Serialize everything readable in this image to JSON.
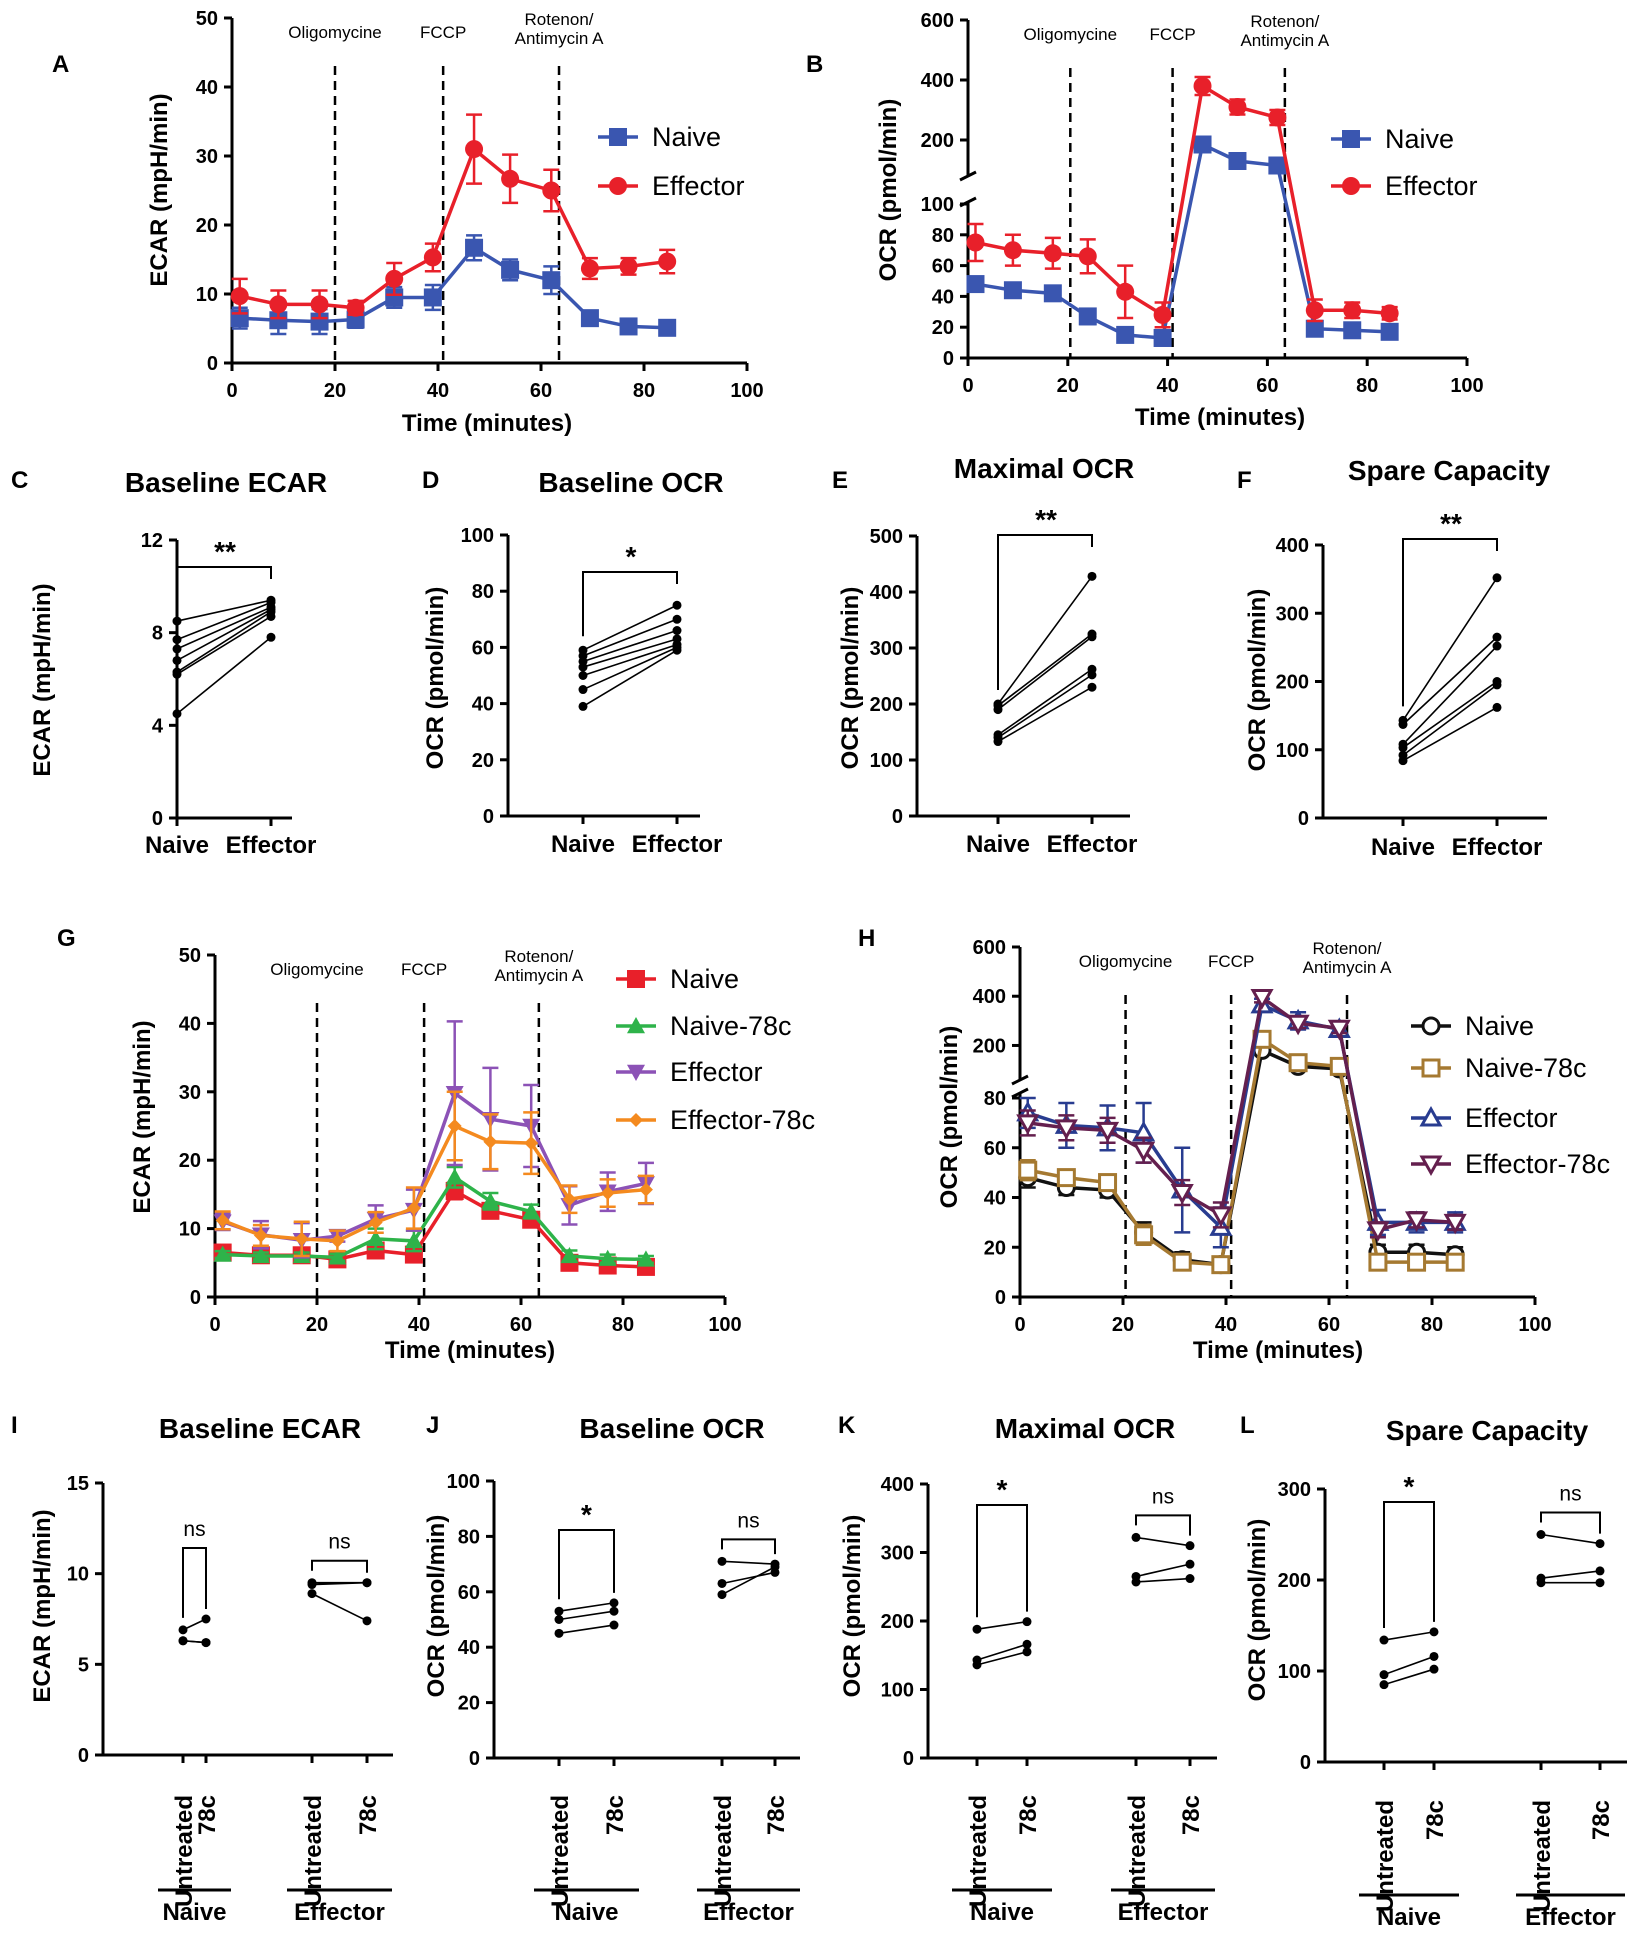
{
  "colors": {
    "naive": "#3a56b0",
    "effector": "#e8202a",
    "g_naive": "#e8202a",
    "g_naive78": "#2eb34a",
    "g_eff": "#8c52b6",
    "g_eff78": "#f48a1f",
    "h_naive": "#111111",
    "h_naive78": "#a57931",
    "h_eff": "#283c90",
    "h_eff78": "#641f4e"
  },
  "chart_data": [
    {
      "panel": "A",
      "type": "line",
      "xlabel": "Time (minutes)",
      "ylabel": "ECAR (mpH/min)",
      "xlim": [
        0,
        100
      ],
      "ylim": [
        0,
        50
      ],
      "xticks": [
        "0",
        "20",
        "40",
        "60",
        "80",
        "100"
      ],
      "yticks": [
        "0",
        "10",
        "20",
        "30",
        "40",
        "50"
      ],
      "injections": [
        {
          "x": 20,
          "label": "Oligomycine"
        },
        {
          "x": 41,
          "label": "FCCP"
        },
        {
          "x": 63.5,
          "label": "Rotenon/ Antimycin A"
        }
      ],
      "x": [
        1.5,
        9,
        17,
        24,
        31.5,
        39,
        47,
        54,
        62,
        69.5,
        77,
        84.5
      ],
      "series": [
        {
          "name": "Naive",
          "marker": "square",
          "values": [
            6.5,
            6.2,
            6,
            6.3,
            9.5,
            9.5,
            16.7,
            13.5,
            12,
            6.5,
            5.3,
            5.1
          ],
          "err": [
            1.5,
            2,
            1.8,
            1.2,
            1.5,
            1.8,
            1.8,
            1.5,
            2,
            0.5,
            0.5,
            0.4
          ]
        },
        {
          "name": "Effector",
          "marker": "circle",
          "values": [
            9.7,
            8.5,
            8.5,
            8,
            12.2,
            15.3,
            31,
            26.7,
            25,
            13.7,
            14,
            14.7
          ],
          "err": [
            2.5,
            2,
            2,
            1,
            2.3,
            2,
            5,
            3.5,
            3,
            1.5,
            1.2,
            1.7
          ]
        }
      ]
    },
    {
      "panel": "B",
      "type": "line",
      "xlabel": "Time (minutes)",
      "ylabel": "OCR (pmol/min)",
      "xlim": [
        0,
        100
      ],
      "ylim_lower": [
        0,
        100
      ],
      "ylim_upper": [
        100,
        600
      ],
      "broken_axis": true,
      "xticks": [
        "0",
        "20",
        "40",
        "60",
        "80",
        "100"
      ],
      "yticks": [
        "0",
        "20",
        "40",
        "60",
        "80",
        "100",
        "200",
        "400",
        "600"
      ],
      "injections": [
        {
          "x": 20.5,
          "label": "Oligomycine"
        },
        {
          "x": 41,
          "label": "FCCP"
        },
        {
          "x": 63.5,
          "label": "Rotenon/ Antimycin A"
        }
      ],
      "x": [
        1.5,
        9,
        17,
        24,
        31.5,
        39,
        47,
        54,
        62,
        69.5,
        77,
        84.5
      ],
      "series": [
        {
          "name": "Naive",
          "marker": "square",
          "values": [
            48,
            44,
            42,
            27,
            15,
            13,
            185,
            130,
            115,
            19,
            18,
            17
          ],
          "err": [
            3,
            2,
            2,
            5,
            2,
            2,
            10,
            8,
            8,
            2,
            2,
            2
          ]
        },
        {
          "name": "Effector",
          "marker": "circle",
          "values": [
            75,
            70,
            68,
            66,
            43,
            28,
            380,
            310,
            275,
            31,
            31,
            29
          ],
          "err": [
            12,
            10,
            10,
            11,
            17,
            8,
            30,
            25,
            25,
            7,
            5,
            4
          ]
        }
      ]
    },
    {
      "panel": "C",
      "type": "paired",
      "title": "Baseline ECAR",
      "ylabel": "ECAR (mpH/min)",
      "ylim": [
        0,
        12
      ],
      "yticks": [
        "0",
        "4",
        "8",
        "12"
      ],
      "categories": [
        "Naive",
        "Effector"
      ],
      "sig": "**",
      "pairs": [
        [
          8.5,
          9.4
        ],
        [
          7.7,
          9.3
        ],
        [
          7.3,
          9.1
        ],
        [
          6.8,
          9
        ],
        [
          6.3,
          8.9
        ],
        [
          6.2,
          8.7
        ],
        [
          4.5,
          7.8
        ]
      ]
    },
    {
      "panel": "D",
      "type": "paired",
      "title": "Baseline OCR",
      "ylabel": "OCR (pmol/min)",
      "ylim": [
        0,
        100
      ],
      "yticks": [
        "0",
        "20",
        "40",
        "60",
        "80",
        "100"
      ],
      "categories": [
        "Naive",
        "Effector"
      ],
      "sig": "*",
      "pairs": [
        [
          59,
          75
        ],
        [
          57,
          70
        ],
        [
          55,
          66
        ],
        [
          53,
          63
        ],
        [
          50,
          61
        ],
        [
          45,
          60
        ],
        [
          39,
          59
        ]
      ]
    },
    {
      "panel": "E",
      "type": "paired",
      "title": "Maximal OCR",
      "ylabel": "OCR (pmol/min)",
      "ylim": [
        0,
        500
      ],
      "yticks": [
        "0",
        "100",
        "200",
        "300",
        "400",
        "500"
      ],
      "categories": [
        "Naive",
        "Effector"
      ],
      "sig": "**",
      "pairs": [
        [
          200,
          428
        ],
        [
          197,
          325
        ],
        [
          190,
          320
        ],
        [
          145,
          262
        ],
        [
          140,
          252
        ],
        [
          133,
          230
        ]
      ]
    },
    {
      "panel": "F",
      "type": "paired",
      "title": "Spare Capacity",
      "ylabel": "OCR (pmol/min)",
      "ylim": [
        0,
        400
      ],
      "yticks": [
        "0",
        "100",
        "200",
        "300",
        "400"
      ],
      "categories": [
        "Naive",
        "Effector"
      ],
      "sig": "**",
      "pairs": [
        [
          143,
          352
        ],
        [
          137,
          265
        ],
        [
          108,
          252
        ],
        [
          103,
          200
        ],
        [
          92,
          195
        ],
        [
          84,
          162
        ]
      ]
    },
    {
      "panel": "G",
      "type": "line",
      "xlabel": "Time (minutes)",
      "ylabel": "ECAR (mpH/min)",
      "xlim": [
        0,
        100
      ],
      "ylim": [
        0,
        50
      ],
      "xticks": [
        "0",
        "20",
        "40",
        "60",
        "80",
        "100"
      ],
      "yticks": [
        "0",
        "10",
        "20",
        "30",
        "40",
        "50"
      ],
      "injections": [
        {
          "x": 20,
          "label": "Oligomycine"
        },
        {
          "x": 41,
          "label": "FCCP"
        },
        {
          "x": 63.5,
          "label": "Rotenon/ Antimycin A"
        }
      ],
      "x": [
        1.5,
        9,
        17,
        24,
        31.5,
        39,
        47,
        54,
        62,
        69.5,
        77,
        84.5
      ],
      "series": [
        {
          "name": "Naive",
          "marker": "square",
          "values": [
            6.5,
            6.1,
            6.1,
            5.5,
            6.8,
            6.2,
            15.5,
            12.6,
            11.3,
            5,
            4.6,
            4.4
          ],
          "err": [
            0.8,
            0.6,
            0.6,
            0.6,
            0.8,
            0.8,
            1.2,
            1,
            0.8,
            0.5,
            0.4,
            0.4
          ]
        },
        {
          "name": "Naive-78c",
          "marker": "triangle-up",
          "values": [
            6.2,
            6,
            6,
            5.8,
            8.5,
            8.2,
            17.5,
            14,
            12.5,
            6,
            5.6,
            5.5
          ],
          "err": [
            0.5,
            0.5,
            0.5,
            0.5,
            1.5,
            1.5,
            1.5,
            1.2,
            1,
            0.8,
            0.6,
            0.5
          ]
        },
        {
          "name": "Effector",
          "marker": "triangle-down",
          "values": [
            11,
            9.1,
            8.3,
            8.9,
            11.4,
            12.7,
            29.8,
            26,
            25,
            13.4,
            15.4,
            16.6
          ],
          "err": [
            1.2,
            2,
            2.5,
            0.8,
            2,
            3,
            10.5,
            7.5,
            6,
            2.8,
            2.8,
            3
          ]
        },
        {
          "name": "Effector-78c",
          "marker": "diamond",
          "values": [
            11.2,
            9,
            8.5,
            8.2,
            10.9,
            13,
            25,
            22.7,
            22.5,
            14.3,
            15.2,
            15.7
          ],
          "err": [
            1.3,
            1.5,
            2.5,
            1.5,
            1.5,
            3,
            5,
            4,
            4.5,
            2,
            2,
            2
          ]
        }
      ]
    },
    {
      "panel": "H",
      "type": "line",
      "xlabel": "Time (minutes)",
      "ylabel": "OCR (pmol/min)",
      "xlim": [
        0,
        100
      ],
      "ylim_lower": [
        0,
        80
      ],
      "ylim_upper": [
        80,
        600
      ],
      "broken_axis": true,
      "xticks": [
        "0",
        "20",
        "40",
        "60",
        "80",
        "100"
      ],
      "yticks": [
        "0",
        "20",
        "40",
        "60",
        "80",
        "200",
        "400",
        "600"
      ],
      "injections": [
        {
          "x": 20.5,
          "label": "Oligomycine"
        },
        {
          "x": 41,
          "label": "FCCP"
        },
        {
          "x": 63.5,
          "label": "Rotenon/ Antimycin A"
        }
      ],
      "x": [
        1.5,
        9,
        17,
        24,
        31.5,
        39,
        47,
        54,
        62,
        69.5,
        77,
        84.5
      ],
      "series": [
        {
          "name": "Naive",
          "marker": "circle-open",
          "values": [
            48,
            44,
            43,
            26,
            15,
            13,
            180,
            115,
            105,
            18,
            18,
            17
          ],
          "err": [
            4,
            3,
            3,
            4,
            3,
            3,
            10,
            8,
            8,
            3,
            3,
            3
          ]
        },
        {
          "name": "Naive-78c",
          "marker": "square-open",
          "values": [
            51,
            48,
            46,
            25,
            14,
            13,
            225,
            130,
            115,
            14,
            14,
            14
          ],
          "err": [
            4,
            3,
            3,
            4,
            3,
            3,
            15,
            8,
            8,
            3,
            3,
            3
          ]
        },
        {
          "name": "Effector",
          "marker": "triangle-up-open",
          "values": [
            74,
            69,
            68,
            66,
            43,
            28,
            365,
            300,
            265,
            30,
            30,
            30
          ],
          "err": [
            6,
            9,
            9,
            12,
            17,
            8,
            25,
            35,
            25,
            5,
            4,
            4
          ]
        },
        {
          "name": "Effector-78c",
          "marker": "triangle-down-open",
          "values": [
            70,
            68,
            67,
            59,
            42,
            33,
            395,
            290,
            270,
            27,
            31,
            30
          ],
          "err": [
            5,
            5,
            5,
            5,
            5,
            5,
            20,
            20,
            20,
            3,
            3,
            3
          ]
        }
      ]
    },
    {
      "panel": "I",
      "type": "paired-grouped",
      "title": "Baseline ECAR",
      "ylabel": "ECAR (mpH/min)",
      "ylim": [
        0,
        15
      ],
      "yticks": [
        "0",
        "5",
        "10",
        "15"
      ],
      "categories": [
        "Untreated",
        "78c",
        "Untreated",
        "78c"
      ],
      "groups": [
        "Naive",
        "Effector"
      ],
      "sig": [
        "ns",
        "ns"
      ],
      "group1": [
        [
          6.9,
          7.5
        ],
        [
          6.3,
          6.2
        ],
        [
          6.3,
          6.2
        ]
      ],
      "group2": [
        [
          9.5,
          9.5
        ],
        [
          9.4,
          9.5
        ],
        [
          8.9,
          7.4
        ]
      ]
    },
    {
      "panel": "J",
      "type": "paired-grouped",
      "title": "Baseline OCR",
      "ylabel": "OCR (pmol/min)",
      "ylim": [
        0,
        100
      ],
      "yticks": [
        "0",
        "20",
        "40",
        "60",
        "80",
        "100"
      ],
      "categories": [
        "Untreated",
        "78c",
        "Untreated",
        "78c"
      ],
      "groups": [
        "Naive",
        "Effector"
      ],
      "sig": [
        "*",
        "ns"
      ],
      "group1": [
        [
          53,
          56
        ],
        [
          50,
          53
        ],
        [
          45,
          48
        ]
      ],
      "group2": [
        [
          71,
          70
        ],
        [
          63,
          67
        ],
        [
          59,
          69
        ]
      ]
    },
    {
      "panel": "K",
      "type": "paired-grouped",
      "title": "Maximal OCR",
      "ylabel": "OCR (pmol/min)",
      "ylim": [
        0,
        400
      ],
      "yticks": [
        "0",
        "100",
        "200",
        "300",
        "400"
      ],
      "categories": [
        "Untreated",
        "78c",
        "Untreated",
        "78c"
      ],
      "groups": [
        "Naive",
        "Effector"
      ],
      "sig": [
        "*",
        "ns"
      ],
      "group1": [
        [
          188,
          199
        ],
        [
          143,
          166
        ],
        [
          136,
          155
        ]
      ],
      "group2": [
        [
          322,
          310
        ],
        [
          265,
          283
        ],
        [
          257,
          262
        ]
      ]
    },
    {
      "panel": "L",
      "type": "paired-grouped",
      "title": "Spare Capacity",
      "ylabel": "OCR (pmol/min)",
      "ylim": [
        0,
        300
      ],
      "yticks": [
        "0",
        "100",
        "200",
        "300"
      ],
      "categories": [
        "Untreated",
        "78c",
        "Untreated",
        "78c"
      ],
      "groups": [
        "Naive",
        "Effector"
      ],
      "sig": [
        "*",
        "ns"
      ],
      "group1": [
        [
          134,
          143
        ],
        [
          96,
          116
        ],
        [
          85,
          102
        ]
      ],
      "group2": [
        [
          250,
          240
        ],
        [
          202,
          210
        ],
        [
          197,
          197
        ]
      ]
    }
  ]
}
